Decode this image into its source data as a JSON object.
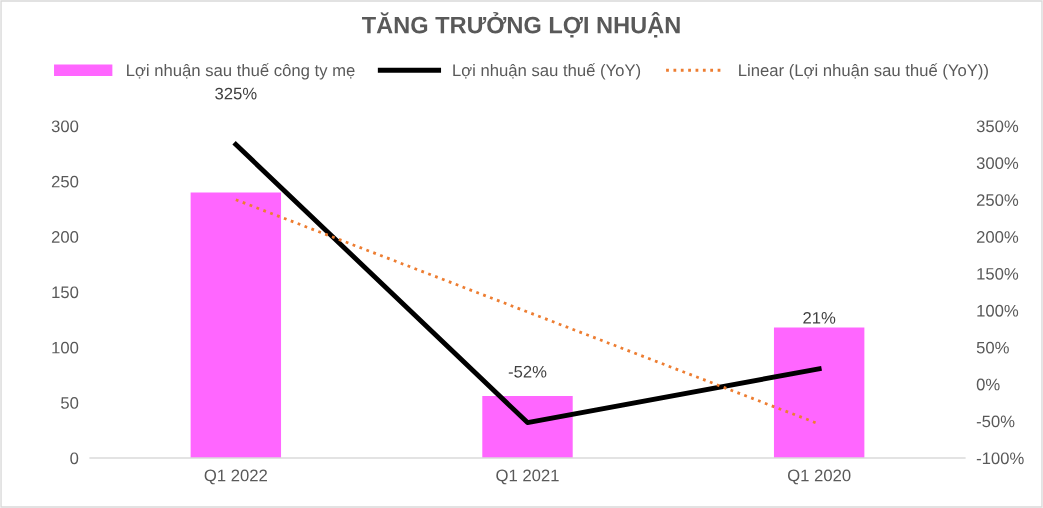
{
  "chart_data": {
    "type": "bar",
    "title": "TĂNG TRƯỞNG LỢI NHUẬN",
    "categories": [
      "Q1 2022",
      "Q1 2021",
      "Q1 2020"
    ],
    "series": [
      {
        "name": "Lợi nhuận sau thuế công ty mẹ",
        "color": "#ff66ff",
        "values": [
          240,
          56,
          118
        ]
      },
      {
        "name": "Lợi nhuận sau thuế (YoY)",
        "type": "line",
        "axis": "y2",
        "color": "#000000",
        "line_style": "solid",
        "values": [
          325,
          -52,
          21
        ],
        "value_labels": [
          "325%",
          "-52%",
          "21%"
        ]
      },
      {
        "name": "Linear (Lợi nhuận sau thuế (YoY))",
        "type": "line",
        "axis": "y2",
        "color": "#ed7d31",
        "line_style": "dotted",
        "values": [
          250,
          98,
          -54
        ]
      }
    ],
    "ylim": [
      0,
      300
    ],
    "yticks": [
      0,
      50,
      100,
      150,
      200,
      250,
      300
    ],
    "y2lim": [
      -100,
      350
    ],
    "y2ticks": [
      {
        "value": -100,
        "label": "-100%"
      },
      {
        "value": -50,
        "label": "-50%"
      },
      {
        "value": 0,
        "label": "0%"
      },
      {
        "value": 50,
        "label": "50%"
      },
      {
        "value": 100,
        "label": "100%"
      },
      {
        "value": 150,
        "label": "150%"
      },
      {
        "value": 200,
        "label": "200%"
      },
      {
        "value": 250,
        "label": "250%"
      },
      {
        "value": 300,
        "label": "300%"
      },
      {
        "value": 350,
        "label": "350%"
      }
    ],
    "grid": false,
    "legend": "top",
    "marker": "none"
  }
}
